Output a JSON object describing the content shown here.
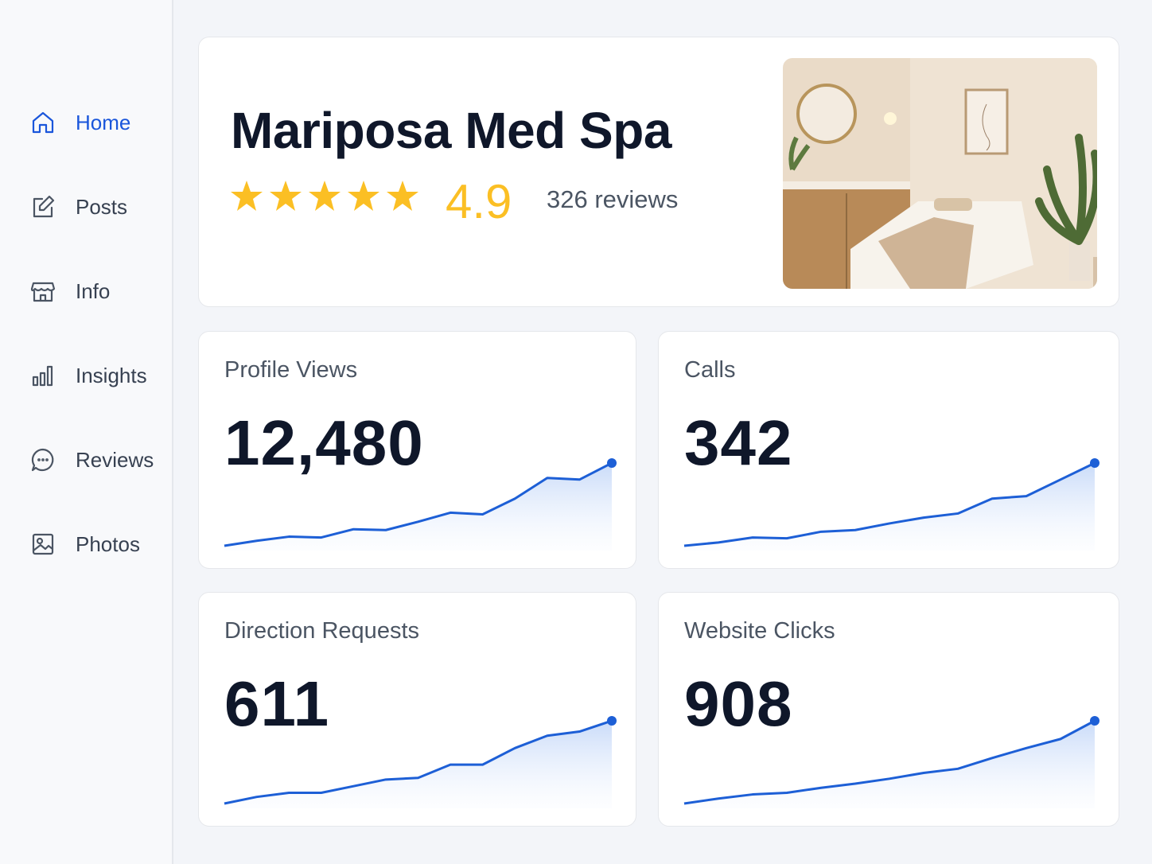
{
  "sidebar": {
    "items": [
      "Home",
      "Posts",
      "Info",
      "Insights",
      "Reviews",
      "Photos"
    ],
    "active": 0
  },
  "header": {
    "title": "Mariposa Med Spa",
    "rating": "4.9",
    "reviews": "326 reviews"
  },
  "metrics": [
    {
      "label": "Profile Views",
      "value": "12,480",
      "trend": [
        0,
        6,
        11,
        10,
        20,
        19,
        29,
        40,
        38,
        57,
        82,
        80,
        100
      ]
    },
    {
      "label": "Calls",
      "value": "342",
      "trend": [
        0,
        4,
        10,
        9,
        17,
        19,
        27,
        34,
        39,
        57,
        60,
        80,
        100
      ]
    },
    {
      "label": "Direction Requests",
      "value": "611",
      "trend": [
        0,
        8,
        13,
        13,
        21,
        29,
        31,
        47,
        47,
        67,
        82,
        87,
        100
      ]
    },
    {
      "label": "Website Clicks",
      "value": "908",
      "trend": [
        0,
        6,
        11,
        13,
        19,
        24,
        30,
        37,
        42,
        55,
        67,
        78,
        100
      ]
    }
  ]
}
